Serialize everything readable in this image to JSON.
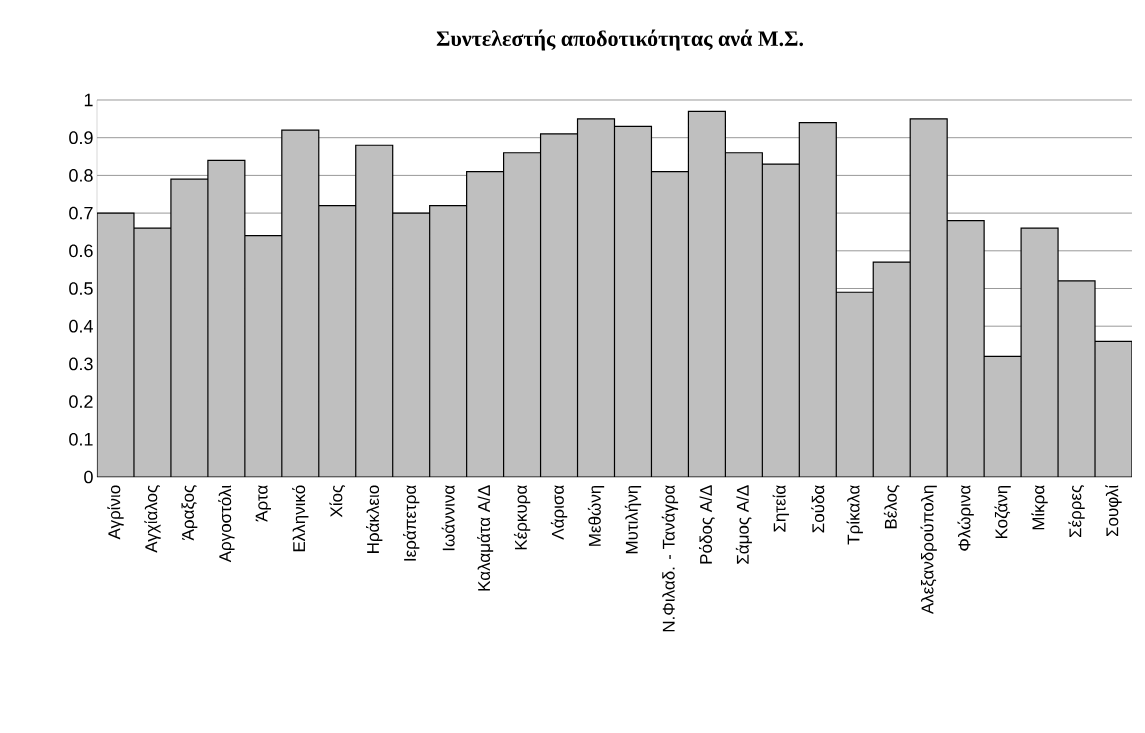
{
  "chart_data": {
    "type": "bar",
    "title": "Συντελεστής αποδοτικότητας ανά Μ.Σ.",
    "categories": [
      "Αγρίνιο",
      "Αγχίαλος",
      "Άραξος",
      "Αργοστόλι",
      "Άρτα",
      "Ελληνικό",
      "Χίος",
      "Ηράκλειο",
      "Ιεράπετρα",
      "Ιωάννινα",
      "Καλαμάτα Α/Δ",
      "Κέρκυρα",
      "Λάρισα",
      "Μεθώνη",
      "Μυτιλήνη",
      "Ν.Φιλαδ. - Τανάγρα",
      "Ρόδος Α/Δ",
      "Σάμος Α/Δ",
      "Σητεία",
      "Σούδα",
      "Τρίκαλα",
      "Βέλος",
      "Αλεξανδρούπολη",
      "Φλώρινα",
      "Κοζάνη",
      "Μίκρα",
      "Σέρρες",
      "Σουφλί"
    ],
    "values": [
      0.7,
      0.66,
      0.79,
      0.84,
      0.64,
      0.92,
      0.72,
      0.88,
      0.7,
      0.72,
      0.81,
      0.86,
      0.91,
      0.95,
      0.93,
      0.81,
      0.97,
      0.86,
      0.83,
      0.94,
      0.49,
      0.57,
      0.95,
      0.68,
      0.32,
      0.66,
      0.52,
      0.36
    ],
    "color": "#bfbfbf",
    "ylim": [
      0,
      1
    ],
    "yticks": [
      0,
      0.1,
      0.2,
      0.3,
      0.4,
      0.5,
      0.6,
      0.7,
      0.8,
      0.9,
      1
    ],
    "grid": "y"
  }
}
